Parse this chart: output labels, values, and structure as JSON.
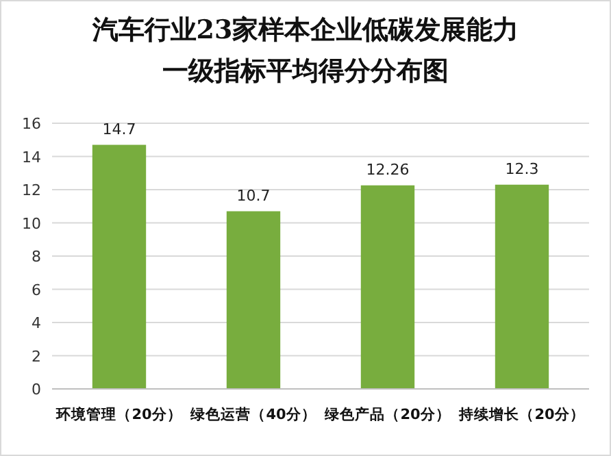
{
  "chart_data": {
    "type": "bar",
    "title": "汽车行业23家样本企业低碳发展能力",
    "subtitle": "一级指标平均得分分布图",
    "categories": [
      "环境管理（20分）",
      "绿色运营（40分）",
      "绿色产品（20分）",
      "持续增长（20分）"
    ],
    "values": [
      14.7,
      10.7,
      12.26,
      12.3
    ],
    "color": "#78ad3e",
    "ylim": [
      0,
      16
    ],
    "yticks": [
      0,
      2,
      4,
      6,
      8,
      10,
      12,
      14,
      16
    ],
    "grid": "y",
    "data_labels": true
  }
}
